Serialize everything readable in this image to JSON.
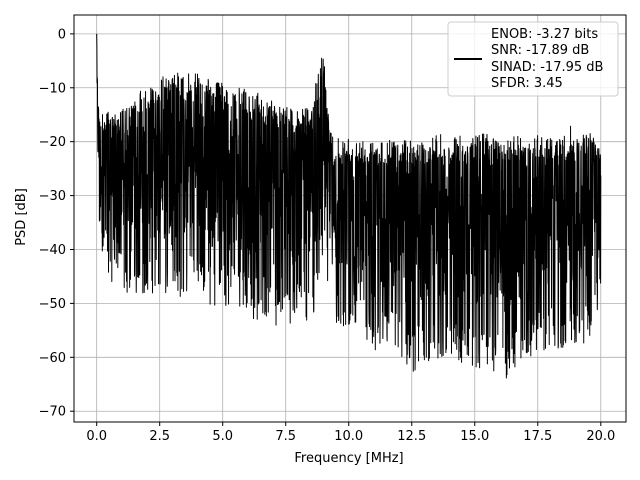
{
  "chart_data": {
    "type": "line",
    "title": "",
    "xlabel": "Frequency [MHz]",
    "ylabel": "PSD [dB]",
    "xlim": [
      -0.9,
      21.0
    ],
    "ylim": [
      -72,
      3.5
    ],
    "xticks": [
      0.0,
      2.5,
      5.0,
      7.5,
      10.0,
      12.5,
      15.0,
      17.5,
      20.0
    ],
    "xtick_labels": [
      "0.0",
      "2.5",
      "5.0",
      "7.5",
      "10.0",
      "12.5",
      "15.0",
      "17.5",
      "20.0"
    ],
    "yticks": [
      0,
      -10,
      -20,
      -30,
      -40,
      -50,
      -60,
      -70
    ],
    "ytick_labels": [
      "0",
      "−10",
      "−20",
      "−30",
      "−40",
      "−50",
      "−60",
      "−70"
    ],
    "grid": true,
    "legend_position": "top-right",
    "legend": {
      "lines": [
        "ENOB: -3.27 bits",
        "SNR: -17.89 dB",
        "SINAD: -17.95 dB",
        "SFDR: 3.45"
      ]
    },
    "series": [
      {
        "color": "#000000",
        "x": [
          0.0,
          0.05,
          0.1,
          0.2,
          0.3,
          0.45,
          0.6,
          0.8,
          1.0,
          1.2,
          1.4,
          1.6,
          1.8,
          2.0,
          2.2,
          2.4,
          2.6,
          2.8,
          3.0,
          3.2,
          3.4,
          3.6,
          3.8,
          4.0,
          4.2,
          4.4,
          4.6,
          4.8,
          5.0,
          5.2,
          5.4,
          5.6,
          5.8,
          6.0,
          6.2,
          6.4,
          6.6,
          6.8,
          7.0,
          7.2,
          7.4,
          7.6,
          7.8,
          8.0,
          8.2,
          8.4,
          8.6,
          8.8,
          8.9,
          9.0,
          9.1,
          9.2,
          9.4,
          9.6,
          9.8,
          10.0,
          10.2,
          10.4,
          10.6,
          10.8,
          11.0,
          11.2,
          11.4,
          11.6,
          11.8,
          12.0,
          12.2,
          12.4,
          12.6,
          12.8,
          13.0,
          13.2,
          13.4,
          13.6,
          13.8,
          14.0,
          14.2,
          14.4,
          14.6,
          14.8,
          15.0,
          15.2,
          15.4,
          15.6,
          15.8,
          16.0,
          16.2,
          16.4,
          16.6,
          16.8,
          17.0,
          17.2,
          17.4,
          17.6,
          17.8,
          18.0,
          18.2,
          18.4,
          18.6,
          18.8,
          19.0,
          19.2,
          19.4,
          19.6,
          19.8,
          20.0
        ],
        "y_max": [
          0,
          -8,
          -15,
          -14,
          -15,
          -13,
          -15,
          -14,
          -14,
          -13,
          -13,
          -12,
          -10,
          -10,
          -9,
          -9,
          -8,
          -7,
          -8,
          -7,
          -8,
          -7,
          -8,
          -7,
          -9,
          -8,
          -9,
          -9,
          -9,
          -10,
          -10,
          -10,
          -10,
          -11,
          -11,
          -11,
          -12,
          -12,
          -12,
          -13,
          -13,
          -13,
          -14,
          -14,
          -14,
          -13,
          -11,
          -7,
          -4,
          -4,
          -8,
          -14,
          -19,
          -19,
          -18,
          -19,
          -19,
          -19,
          -19,
          -20,
          -20,
          -19,
          -20,
          -19,
          -20,
          -20,
          -19,
          -19,
          -20,
          -20,
          -20,
          -20,
          -19,
          -18,
          -20,
          -20,
          -19,
          -18,
          -20,
          -20,
          -19,
          -18,
          -17,
          -20,
          -19,
          -20,
          -20,
          -19,
          -19,
          -19,
          -20,
          -20,
          -19,
          -18,
          -20,
          -19,
          -19,
          -18,
          -19,
          -17,
          -20,
          -18,
          -19,
          -17,
          -20,
          -20
        ],
        "y_min": [
          -28,
          -34,
          -38,
          -40,
          -42,
          -44,
          -46,
          -46,
          -48,
          -48,
          -47,
          -49,
          -48,
          -50,
          -49,
          -49,
          -50,
          -49,
          -52,
          -50,
          -50,
          -49,
          -48,
          -49,
          -49,
          -50,
          -51,
          -50,
          -50,
          -52,
          -50,
          -52,
          -51,
          -52,
          -53,
          -53,
          -52,
          -53,
          -56,
          -54,
          -53,
          -54,
          -55,
          -52,
          -56,
          -53,
          -52,
          -48,
          -44,
          -42,
          -45,
          -50,
          -54,
          -55,
          -55,
          -56,
          -56,
          -57,
          -57,
          -58,
          -60,
          -58,
          -58,
          -59,
          -59,
          -61,
          -61,
          -62,
          -63,
          -61,
          -62,
          -61,
          -60,
          -62,
          -61,
          -60,
          -61,
          -62,
          -62,
          -61,
          -62,
          -63,
          -61,
          -62,
          -64,
          -63,
          -65,
          -62,
          -62,
          -61,
          -60,
          -60,
          -60,
          -59,
          -59,
          -58,
          -59,
          -58,
          -59,
          -58,
          -58,
          -57,
          -58,
          -56,
          -54,
          -48
        ]
      }
    ]
  }
}
